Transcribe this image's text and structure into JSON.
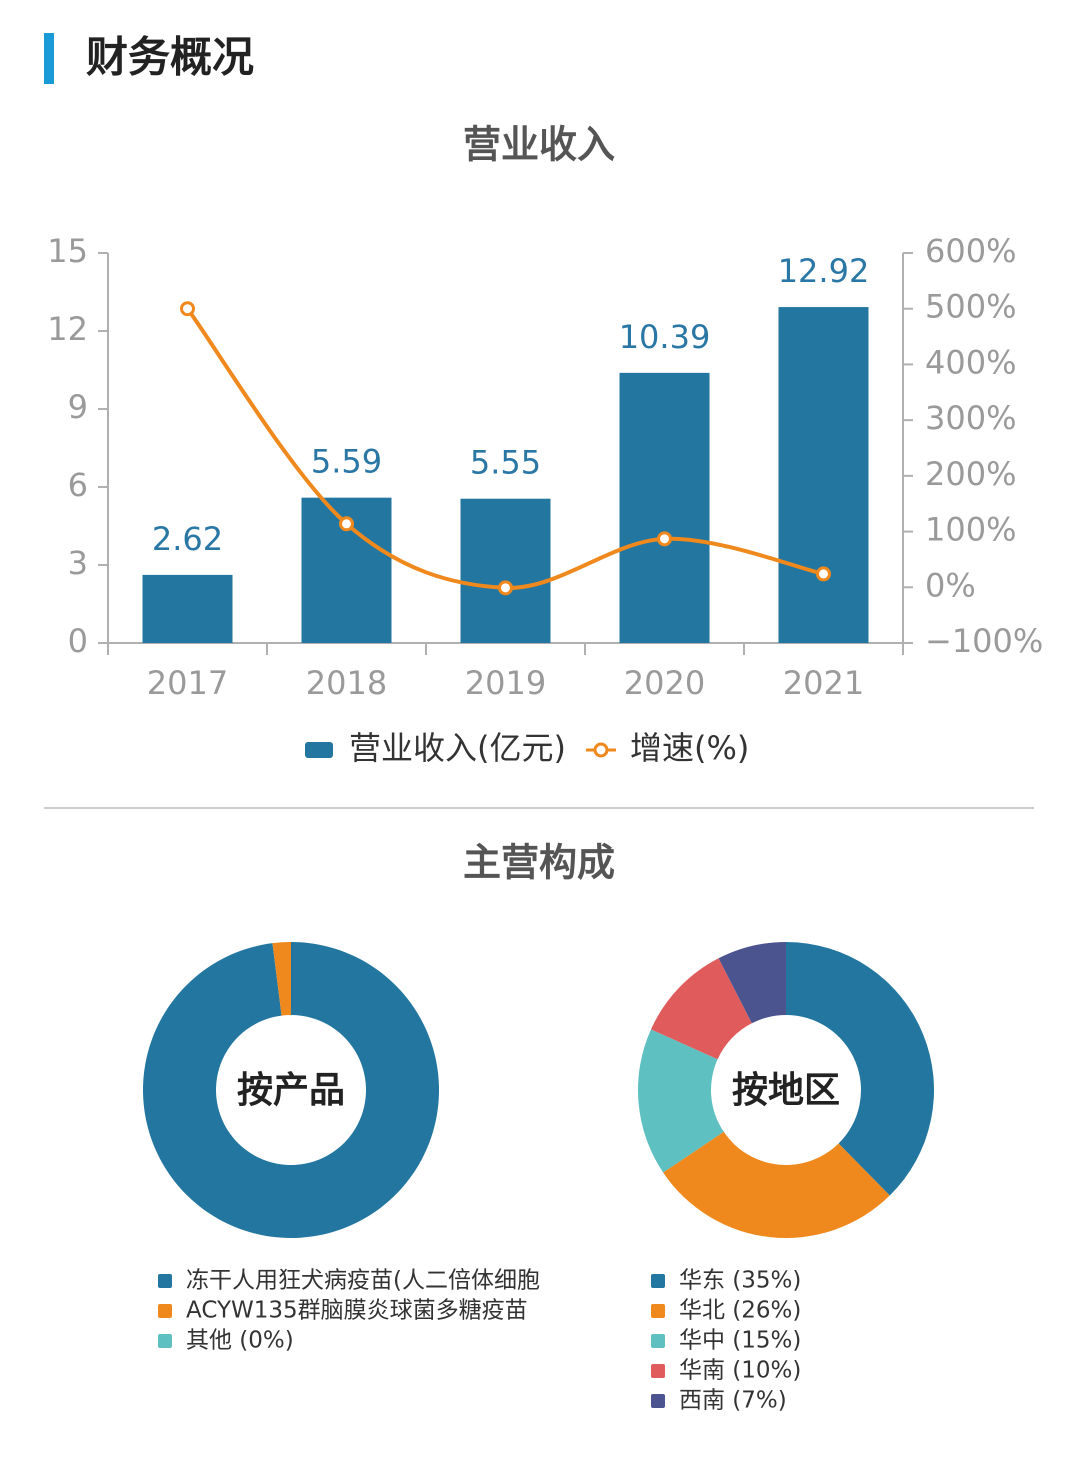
{
  "header": {
    "title": "财务概况"
  },
  "chart_data": [
    {
      "type": "bar",
      "title": "营业收入",
      "categories": [
        "2017",
        "2018",
        "2019",
        "2020",
        "2021"
      ],
      "series": [
        {
          "name": "营业收入(亿元)",
          "color": "#23769f",
          "values": [
            2.62,
            5.59,
            5.55,
            10.39,
            12.92
          ]
        },
        {
          "name": "增速(%)",
          "color": "#f0891d",
          "axis": "y2",
          "values": [
            500,
            114,
            -1,
            87,
            24
          ]
        }
      ],
      "ylim": [
        0,
        15
      ],
      "yticks": [
        0,
        3,
        6,
        9,
        12,
        15
      ],
      "y2lim": [
        -100,
        600
      ],
      "y2ticks": [
        {
          "value": -100,
          "label": "−100%"
        },
        {
          "value": 0,
          "label": "0%"
        },
        {
          "value": 100,
          "label": "100%"
        },
        {
          "value": 200,
          "label": "200%"
        },
        {
          "value": 300,
          "label": "300%"
        },
        {
          "value": 400,
          "label": "400%"
        },
        {
          "value": 500,
          "label": "500%"
        },
        {
          "value": 600,
          "label": "600%"
        }
      ],
      "legend": "bottom"
    },
    {
      "type": "pie",
      "title": "主营构成",
      "center_label": "按产品",
      "labels": [
        "冻干人用狂犬病疫苗(人二倍体细胞",
        "ACYW135群脑膜炎球菌多糖疫苗",
        "其他 (0%)"
      ],
      "values": [
        98,
        2,
        0
      ],
      "colors": [
        "#23769f",
        "#f0891d",
        "#5ec0c0"
      ]
    },
    {
      "type": "pie",
      "center_label": "按地区",
      "labels": [
        "华东 (35%)",
        "华北 (26%)",
        "华中 (15%)",
        "华南 (10%)",
        "西南 (7%)"
      ],
      "values": [
        35,
        26,
        15,
        10,
        7
      ],
      "colors": [
        "#23769f",
        "#f0891d",
        "#5ec0c0",
        "#e05c5c",
        "#4c5490"
      ]
    }
  ]
}
